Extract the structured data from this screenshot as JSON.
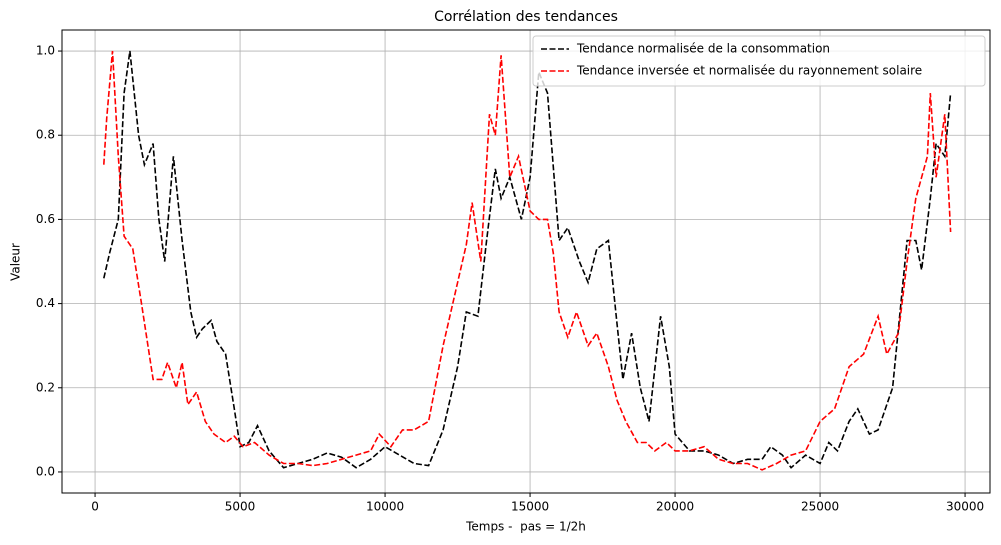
{
  "chart_data": {
    "type": "line",
    "title": "Corrélation des tendances",
    "xlabel": "Temps -  pas = 1/2h",
    "ylabel": "Valeur",
    "xlim": [
      -1140,
      30860
    ],
    "ylim": [
      -0.05,
      1.05
    ],
    "xticks": [
      0,
      5000,
      10000,
      15000,
      20000,
      25000,
      30000
    ],
    "yticks": [
      {
        "value": 0,
        "label": "0.0"
      },
      0.2,
      0.4,
      0.6,
      0.8,
      {
        "value": 1,
        "label": "1.0"
      }
    ],
    "grid": true,
    "legend": "upper right",
    "series": [
      {
        "name": "Tendance normalisée de la consommation",
        "color": "#000000",
        "x": [
          300,
          500,
          800,
          1000,
          1200,
          1500,
          1700,
          2000,
          2200,
          2400,
          2700,
          3000,
          3300,
          3500,
          3700,
          4000,
          4200,
          4500,
          4800,
          5000,
          5300,
          5600,
          6000,
          6500,
          7000,
          7500,
          8000,
          8500,
          9000,
          9500,
          10000,
          10500,
          11000,
          11500,
          12000,
          12500,
          12800,
          13200,
          13500,
          13800,
          14000,
          14300,
          14700,
          15000,
          15300,
          15600,
          16000,
          16300,
          16700,
          17000,
          17300,
          17700,
          18000,
          18200,
          18500,
          18800,
          19100,
          19500,
          19800,
          20000,
          20500,
          21000,
          21500,
          22000,
          22500,
          23000,
          23300,
          23700,
          24000,
          24500,
          25000,
          25300,
          25600,
          26000,
          26300,
          26700,
          27000,
          27500,
          28000,
          28300,
          28500,
          28800,
          29000,
          29300,
          29500
        ],
        "values": [
          0.46,
          0.52,
          0.6,
          0.9,
          1.0,
          0.8,
          0.73,
          0.78,
          0.6,
          0.5,
          0.75,
          0.55,
          0.38,
          0.32,
          0.34,
          0.36,
          0.31,
          0.28,
          0.15,
          0.06,
          0.07,
          0.11,
          0.05,
          0.01,
          0.02,
          0.03,
          0.045,
          0.035,
          0.01,
          0.03,
          0.06,
          0.04,
          0.02,
          0.015,
          0.1,
          0.25,
          0.38,
          0.37,
          0.55,
          0.72,
          0.65,
          0.7,
          0.6,
          0.7,
          0.95,
          0.9,
          0.55,
          0.58,
          0.5,
          0.45,
          0.53,
          0.55,
          0.35,
          0.22,
          0.33,
          0.2,
          0.12,
          0.37,
          0.25,
          0.09,
          0.05,
          0.05,
          0.04,
          0.02,
          0.03,
          0.03,
          0.06,
          0.04,
          0.01,
          0.04,
          0.02,
          0.07,
          0.05,
          0.12,
          0.15,
          0.09,
          0.1,
          0.2,
          0.55,
          0.55,
          0.48,
          0.65,
          0.78,
          0.75,
          0.9
        ]
      },
      {
        "name": "Tendance inversée et normalisée du rayonnement solaire",
        "color": "#ff0000",
        "x": [
          300,
          400,
          600,
          800,
          1000,
          1300,
          1600,
          2000,
          2300,
          2500,
          2800,
          3000,
          3200,
          3500,
          3800,
          4100,
          4500,
          4800,
          5100,
          5500,
          6000,
          6500,
          7000,
          7500,
          8000,
          8500,
          9000,
          9500,
          9800,
          10200,
          10600,
          11000,
          11500,
          12000,
          12500,
          12800,
          13000,
          13300,
          13600,
          13800,
          14000,
          14300,
          14600,
          15000,
          15300,
          15600,
          15800,
          16000,
          16300,
          16600,
          17000,
          17300,
          17700,
          18000,
          18300,
          18700,
          19000,
          19300,
          19700,
          20000,
          20500,
          21000,
          21500,
          22000,
          22500,
          23000,
          23500,
          24000,
          24500,
          25000,
          25500,
          26000,
          26500,
          27000,
          27300,
          27700,
          28000,
          28300,
          28700,
          28800,
          29000,
          29300,
          29500
        ],
        "values": [
          0.73,
          0.84,
          1.0,
          0.75,
          0.56,
          0.53,
          0.4,
          0.22,
          0.22,
          0.26,
          0.2,
          0.26,
          0.16,
          0.19,
          0.12,
          0.09,
          0.07,
          0.085,
          0.06,
          0.07,
          0.04,
          0.02,
          0.02,
          0.015,
          0.02,
          0.03,
          0.04,
          0.05,
          0.09,
          0.06,
          0.1,
          0.1,
          0.12,
          0.3,
          0.45,
          0.54,
          0.64,
          0.5,
          0.85,
          0.8,
          0.99,
          0.7,
          0.75,
          0.62,
          0.6,
          0.6,
          0.52,
          0.38,
          0.32,
          0.38,
          0.3,
          0.33,
          0.25,
          0.17,
          0.12,
          0.07,
          0.07,
          0.05,
          0.07,
          0.05,
          0.05,
          0.06,
          0.03,
          0.02,
          0.02,
          0.005,
          0.02,
          0.04,
          0.05,
          0.12,
          0.15,
          0.25,
          0.28,
          0.37,
          0.28,
          0.33,
          0.5,
          0.65,
          0.75,
          0.9,
          0.7,
          0.85,
          0.57
        ]
      }
    ]
  }
}
